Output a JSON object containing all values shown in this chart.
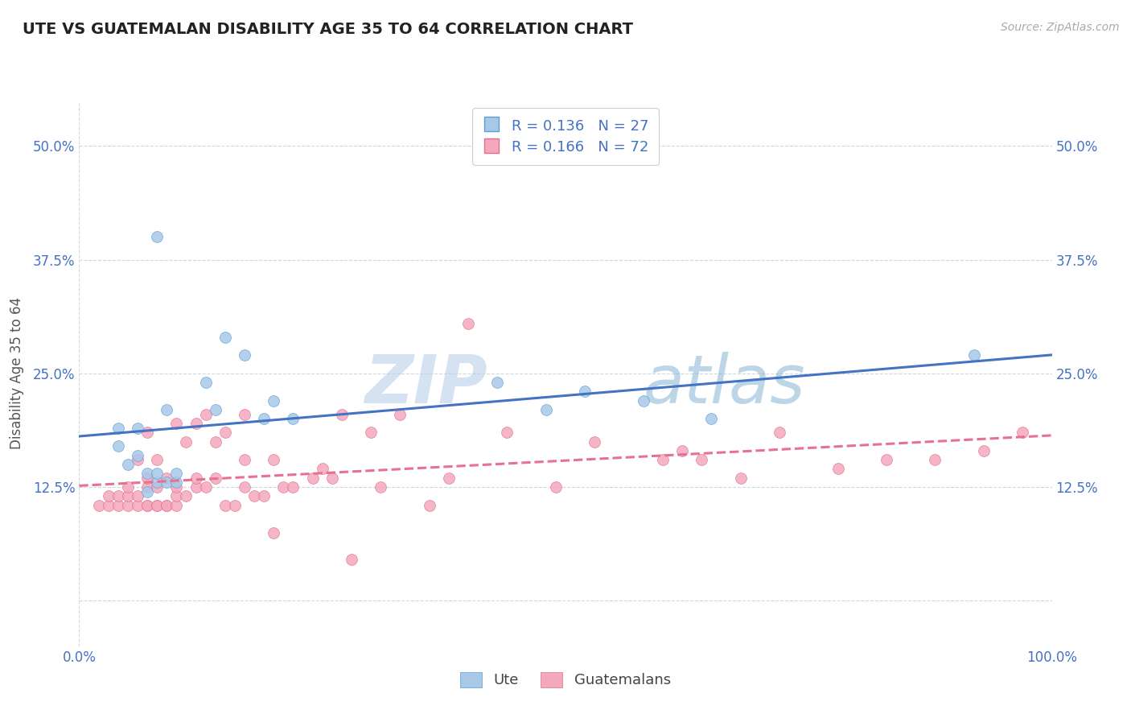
{
  "title": "UTE VS GUATEMALAN DISABILITY AGE 35 TO 64 CORRELATION CHART",
  "source_text": "Source: ZipAtlas.com",
  "ylabel": "Disability Age 35 to 64",
  "xlim": [
    0.0,
    1.0
  ],
  "ylim": [
    -0.05,
    0.55
  ],
  "yticks": [
    0.0,
    0.125,
    0.25,
    0.375,
    0.5
  ],
  "ytick_labels_left": [
    "",
    "12.5%",
    "25.0%",
    "37.5%",
    "50.0%"
  ],
  "ytick_labels_right": [
    "",
    "12.5%",
    "25.0%",
    "37.5%",
    "50.0%"
  ],
  "xticks": [
    0.0,
    1.0
  ],
  "xtick_labels": [
    "0.0%",
    "100.0%"
  ],
  "legend_text_color": "#4472c4",
  "ute_color": "#a8c8e8",
  "guatemalan_color": "#f4a8bc",
  "ute_edge_color": "#5a9fd4",
  "guatemalan_edge_color": "#e07090",
  "ute_line_color": "#4472c4",
  "guatemalan_line_color": "#e87090",
  "background_color": "#ffffff",
  "grid_color": "#d0d8e0",
  "title_color": "#222222",
  "axis_label_color": "#555555",
  "tick_label_color": "#4472c4",
  "watermark_color": "#d0dff0",
  "ute_x": [
    0.04,
    0.05,
    0.06,
    0.07,
    0.07,
    0.08,
    0.08,
    0.09,
    0.09,
    0.1,
    0.1,
    0.13,
    0.14,
    0.15,
    0.17,
    0.19,
    0.2,
    0.22,
    0.43,
    0.48,
    0.52,
    0.58,
    0.65,
    0.92,
    0.04,
    0.06,
    0.08
  ],
  "ute_y": [
    0.17,
    0.15,
    0.16,
    0.12,
    0.14,
    0.13,
    0.4,
    0.13,
    0.21,
    0.13,
    0.14,
    0.24,
    0.21,
    0.29,
    0.27,
    0.2,
    0.22,
    0.2,
    0.24,
    0.21,
    0.23,
    0.22,
    0.2,
    0.27,
    0.19,
    0.19,
    0.14
  ],
  "guatemalan_x": [
    0.02,
    0.03,
    0.03,
    0.04,
    0.04,
    0.05,
    0.05,
    0.05,
    0.06,
    0.06,
    0.06,
    0.07,
    0.07,
    0.07,
    0.07,
    0.07,
    0.08,
    0.08,
    0.08,
    0.08,
    0.09,
    0.09,
    0.09,
    0.1,
    0.1,
    0.1,
    0.1,
    0.11,
    0.11,
    0.12,
    0.12,
    0.12,
    0.13,
    0.13,
    0.14,
    0.14,
    0.15,
    0.15,
    0.16,
    0.17,
    0.17,
    0.17,
    0.18,
    0.19,
    0.2,
    0.2,
    0.21,
    0.22,
    0.24,
    0.25,
    0.26,
    0.27,
    0.28,
    0.3,
    0.31,
    0.33,
    0.36,
    0.38,
    0.4,
    0.44,
    0.49,
    0.53,
    0.6,
    0.62,
    0.64,
    0.68,
    0.72,
    0.78,
    0.83,
    0.88,
    0.93,
    0.97
  ],
  "guatemalan_y": [
    0.105,
    0.105,
    0.115,
    0.105,
    0.115,
    0.105,
    0.115,
    0.125,
    0.105,
    0.115,
    0.155,
    0.105,
    0.105,
    0.125,
    0.135,
    0.185,
    0.105,
    0.105,
    0.125,
    0.155,
    0.105,
    0.105,
    0.135,
    0.105,
    0.115,
    0.125,
    0.195,
    0.115,
    0.175,
    0.125,
    0.135,
    0.195,
    0.125,
    0.205,
    0.135,
    0.175,
    0.105,
    0.185,
    0.105,
    0.125,
    0.155,
    0.205,
    0.115,
    0.115,
    0.075,
    0.155,
    0.125,
    0.125,
    0.135,
    0.145,
    0.135,
    0.205,
    0.045,
    0.185,
    0.125,
    0.205,
    0.105,
    0.135,
    0.305,
    0.185,
    0.125,
    0.175,
    0.155,
    0.165,
    0.155,
    0.135,
    0.185,
    0.145,
    0.155,
    0.155,
    0.165,
    0.185
  ]
}
